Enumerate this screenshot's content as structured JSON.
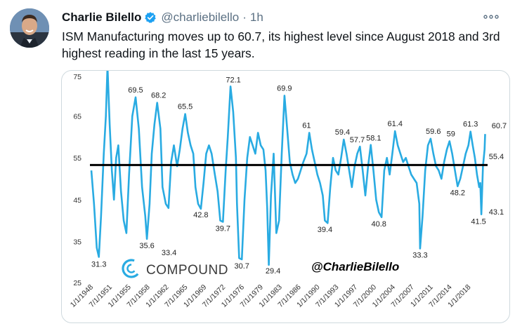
{
  "tweet": {
    "author_name": "Charlie Bilello",
    "handle": "@charliebilello",
    "separator": "·",
    "time": "1h",
    "text": "ISM Manufacturing moves up to 60.7, its highest level since August 2018 and 3rd highest reading in the last 15 years.",
    "icons": {
      "verified": "verified-badge-icon",
      "more": "more-options-icon"
    },
    "colors": {
      "verified": "#1da1f2",
      "line": "#29abe2",
      "baseline": "#000000"
    }
  },
  "chart_data": {
    "type": "line",
    "title": "",
    "xlabel": "",
    "ylabel": "",
    "ylim": [
      25,
      75
    ],
    "yticks": [
      "75",
      "65",
      "55",
      "45",
      "35",
      "25"
    ],
    "xticks": [
      "1/1/1948",
      "7/1/1951",
      "1/1/1955",
      "7/1/1958",
      "1/1/1962",
      "7/1/1965",
      "1/1/1969",
      "7/1/1972",
      "1/1/1976",
      "7/1/1979",
      "1/1/1983",
      "7/1/1986",
      "1/1/1990",
      "7/1/1993",
      "1/1/1997",
      "7/1/2000",
      "1/1/2004",
      "7/1/2007",
      "1/1/2011",
      "7/1/2014",
      "1/1/2018"
    ],
    "baseline_value": 53.3,
    "branding": {
      "logo_text": "COMPOUND",
      "watermark": "@CharlieBilello"
    },
    "series": [
      {
        "x": [
          1948.0,
          1948.5,
          1949.0,
          1949.4,
          1949.8,
          1950.3,
          1950.7,
          1951.0,
          1951.4,
          1951.8,
          1952.2,
          1952.6,
          1953.0,
          1953.5,
          1954.0,
          1954.5,
          1955.0,
          1955.6,
          1956.2,
          1956.8,
          1957.4,
          1958.0,
          1958.3,
          1958.8,
          1959.2,
          1959.7,
          1960.2,
          1960.8,
          1961.2,
          1961.8,
          1962.3,
          1962.8,
          1963.3,
          1963.9,
          1964.4,
          1964.9,
          1965.4,
          1965.9,
          1966.4,
          1966.9,
          1967.3,
          1967.8,
          1968.3,
          1968.8,
          1969.3,
          1969.8,
          1970.3,
          1970.9,
          1971.4,
          1971.9,
          1972.4,
          1972.9,
          1973.3,
          1973.8,
          1974.3,
          1974.8,
          1975.0,
          1975.4,
          1975.9,
          1976.4,
          1976.9,
          1977.4,
          1977.9,
          1978.4,
          1978.9,
          1979.4,
          1979.9,
          1980.3,
          1980.6,
          1980.9,
          1981.3,
          1981.8,
          1982.3,
          1982.8,
          1983.3,
          1983.8,
          1984.3,
          1984.8,
          1985.3,
          1985.8,
          1986.3,
          1986.8,
          1987.3,
          1987.9,
          1988.4,
          1988.9,
          1989.4,
          1989.9,
          1990.4,
          1990.9,
          1991.3,
          1991.8,
          1992.3,
          1992.8,
          1993.3,
          1993.8,
          1994.3,
          1994.8,
          1995.3,
          1995.8,
          1996.3,
          1996.8,
          1997.3,
          1997.8,
          1998.3,
          1998.8,
          1999.3,
          1999.8,
          2000.3,
          2000.8,
          2001.3,
          2001.8,
          2002.3,
          2002.8,
          2003.3,
          2003.8,
          2004.3,
          2004.8,
          2005.3,
          2005.8,
          2006.3,
          2006.8,
          2007.3,
          2007.8,
          2008.3,
          2008.8,
          2008.95,
          2009.4,
          2009.9,
          2010.4,
          2010.9,
          2011.4,
          2011.9,
          2012.4,
          2012.9,
          2013.4,
          2013.9,
          2014.4,
          2014.9,
          2015.4,
          2015.9,
          2016.4,
          2016.9,
          2017.4,
          2017.9,
          2018.3,
          2018.7,
          2019.1,
          2019.5,
          2019.9,
          2020.1,
          2020.3,
          2020.6,
          2020.9,
          2021.0
        ],
        "values": [
          52,
          44,
          33.5,
          31.3,
          41,
          56,
          65,
          77,
          63,
          52,
          45,
          55,
          58,
          47,
          40,
          37,
          51,
          65,
          69.5,
          62,
          48,
          41,
          35.6,
          44,
          56,
          63,
          68.2,
          62,
          48,
          44,
          43,
          54,
          58,
          53,
          57,
          62,
          65.5,
          61,
          58,
          56,
          48,
          44,
          42.8,
          49,
          56,
          58,
          56,
          51,
          47,
          40,
          39.7,
          52,
          60,
          72.1,
          66,
          55,
          44,
          31,
          30.7,
          45,
          55,
          60,
          58,
          56,
          61,
          58,
          57,
          52,
          43,
          29.4,
          46,
          56,
          37,
          40,
          56,
          69.9,
          62,
          54,
          51,
          49,
          50,
          52,
          54,
          56,
          61,
          57,
          54,
          51,
          49,
          46,
          40,
          39.4,
          48,
          55,
          52,
          51,
          55,
          59.4,
          56,
          52,
          48,
          53,
          56,
          57.7,
          52,
          46,
          53,
          58.1,
          52,
          45,
          42,
          40.8,
          52,
          55,
          51,
          56,
          61.4,
          58,
          56,
          54,
          55,
          53,
          51,
          50,
          49,
          44,
          33.3,
          41,
          52,
          58,
          59.6,
          56,
          53,
          52,
          50,
          54,
          57,
          59,
          56,
          52,
          48.2,
          50,
          53,
          56,
          58,
          61.3,
          58,
          55,
          51,
          48,
          49,
          41.5,
          53,
          57,
          60.7
        ]
      }
    ],
    "annotations": [
      {
        "label": "31.3",
        "x": 1949.4,
        "y": 31.3
      },
      {
        "label": "69.5",
        "x": 1956.2,
        "y": 69.5
      },
      {
        "label": "35.6",
        "x": 1958.3,
        "y": 35.6
      },
      {
        "label": "68.2",
        "x": 1960.2,
        "y": 68.2
      },
      {
        "label": "33.4",
        "x": 1961.1,
        "y": 33.4
      },
      {
        "label": "65.5",
        "x": 1965.4,
        "y": 65.5
      },
      {
        "label": "42.8",
        "x": 1968.3,
        "y": 42.8
      },
      {
        "label": "39.7",
        "x": 1972.4,
        "y": 39.7
      },
      {
        "label": "72.1",
        "x": 1973.8,
        "y": 72.1
      },
      {
        "label": "30.7",
        "x": 1975.9,
        "y": 30.7
      },
      {
        "label": "29.4",
        "x": 1980.9,
        "y": 29.4
      },
      {
        "label": "69.9",
        "x": 1983.8,
        "y": 69.9
      },
      {
        "label": "61",
        "x": 1987.9,
        "y": 61
      },
      {
        "label": "39.4",
        "x": 1991.3,
        "y": 39.4
      },
      {
        "label": "59.4",
        "x": 1994.3,
        "y": 59.4
      },
      {
        "label": "57.7",
        "x": 1997.3,
        "y": 57.7
      },
      {
        "label": "58.1",
        "x": 1999.3,
        "y": 58.1
      },
      {
        "label": "40.8",
        "x": 2001.3,
        "y": 40.8
      },
      {
        "label": "61.4",
        "x": 2004.3,
        "y": 61.4
      },
      {
        "label": "33.3",
        "x": 2008.95,
        "y": 33.3
      },
      {
        "label": "59.6",
        "x": 2011.4,
        "y": 59.6
      },
      {
        "label": "59",
        "x": 2014.4,
        "y": 59
      },
      {
        "label": "48.2",
        "x": 2015.9,
        "y": 48.2
      },
      {
        "label": "61.3",
        "x": 2018.3,
        "y": 61.3
      },
      {
        "label": "41.5",
        "x": 2020.3,
        "y": 41.5
      },
      {
        "label": "60.7",
        "x": 2021.0,
        "y": 60.7
      },
      {
        "label": "55.4",
        "x": 2021.0,
        "y": 55.4
      },
      {
        "label": "43.1",
        "x": 2021.0,
        "y": 43.1
      }
    ]
  }
}
